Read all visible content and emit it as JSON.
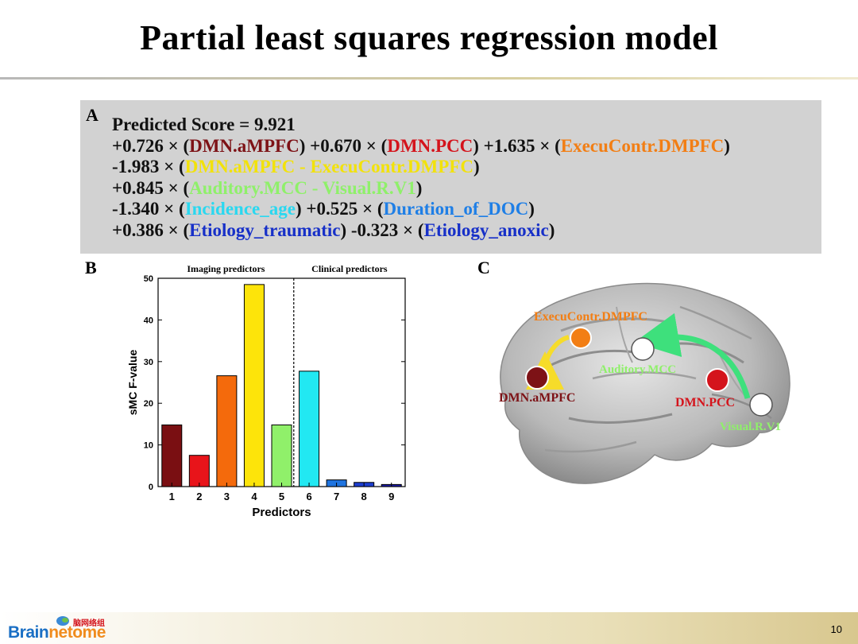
{
  "slide": {
    "title": "Partial least squares regression model",
    "page_number": "10"
  },
  "panel_a": {
    "letter": "A",
    "line1": {
      "label": "Predicted Score = ",
      "value": "9.921"
    },
    "line2": [
      {
        "t": "+0.726 × (",
        "c": ""
      },
      {
        "t": "DMN.aMPFC",
        "c": "c-dark"
      },
      {
        "t": ") +0.670 × (",
        "c": ""
      },
      {
        "t": "DMN.PCC",
        "c": "c-red"
      },
      {
        "t": ") +1.635 × (",
        "c": ""
      },
      {
        "t": "ExecuContr.DMPFC",
        "c": "c-orange"
      },
      {
        "t": ")",
        "c": ""
      }
    ],
    "line3": [
      {
        "t": "-1.983 × (",
        "c": ""
      },
      {
        "t": "DMN.aMPFC - ExecuContr.DMPFC",
        "c": "c-yellow"
      },
      {
        "t": ")",
        "c": ""
      }
    ],
    "line4": [
      {
        "t": "+0.845 × (",
        "c": ""
      },
      {
        "t": "Auditory.MCC - Visual.R.V1",
        "c": "c-green"
      },
      {
        "t": ")",
        "c": ""
      }
    ],
    "line5": [
      {
        "t": "-1.340 × (",
        "c": ""
      },
      {
        "t": "Incidence_age",
        "c": "c-cyan"
      },
      {
        "t": ") +0.525 × (",
        "c": ""
      },
      {
        "t": "Duration_of_DOC",
        "c": "c-blue1"
      },
      {
        "t": ")",
        "c": ""
      }
    ],
    "line6": [
      {
        "t": "+0.386 × (",
        "c": ""
      },
      {
        "t": "Etiology_traumatic",
        "c": "c-blue2"
      },
      {
        "t": ") -0.323 × (",
        "c": ""
      },
      {
        "t": "Etiology_anoxic",
        "c": "c-blue2"
      },
      {
        "t": ")",
        "c": ""
      }
    ]
  },
  "panel_b": {
    "letter": "B"
  },
  "panel_c": {
    "letter": "C",
    "nodes": [
      {
        "label": "ExecuContr.DMPFC",
        "color": "#f27e14",
        "label_color": "#f27e14"
      },
      {
        "label": "Auditory.MCC",
        "color": "#ffffff",
        "label_color": "#8ff06a"
      },
      {
        "label": "DMN.aMPFC",
        "color": "#7d1216",
        "label_color": "#7d1216"
      },
      {
        "label": "DMN.PCC",
        "color": "#d4141c",
        "label_color": "#d4141c"
      },
      {
        "label": "Visual.R.V1",
        "color": "#ffffff",
        "label_color": "#8ff06a"
      }
    ]
  },
  "chart_data": {
    "type": "bar",
    "categories": [
      "1",
      "2",
      "3",
      "4",
      "5",
      "6",
      "7",
      "8",
      "9"
    ],
    "values": [
      14.8,
      7.5,
      26.6,
      48.5,
      14.8,
      27.7,
      1.6,
      1.0,
      0.5
    ],
    "colors": [
      "#7a0f12",
      "#e8141a",
      "#f46a0c",
      "#fde40a",
      "#90f06a",
      "#22e8f2",
      "#1f74e0",
      "#1d3ed0",
      "#1a1aa8"
    ],
    "xlabel": "Predictors",
    "ylabel": "sMC F-value",
    "ylim": [
      0,
      50
    ],
    "yticks": [
      0,
      10,
      20,
      30,
      40,
      50
    ],
    "group_labels": [
      "Imaging predictors",
      "Clinical predictors"
    ],
    "divider_after_category": "5",
    "grid": false
  },
  "logo": {
    "brand_main": "Brain",
    "brand_accent": "netome",
    "brand_cn": "脑网络组"
  }
}
